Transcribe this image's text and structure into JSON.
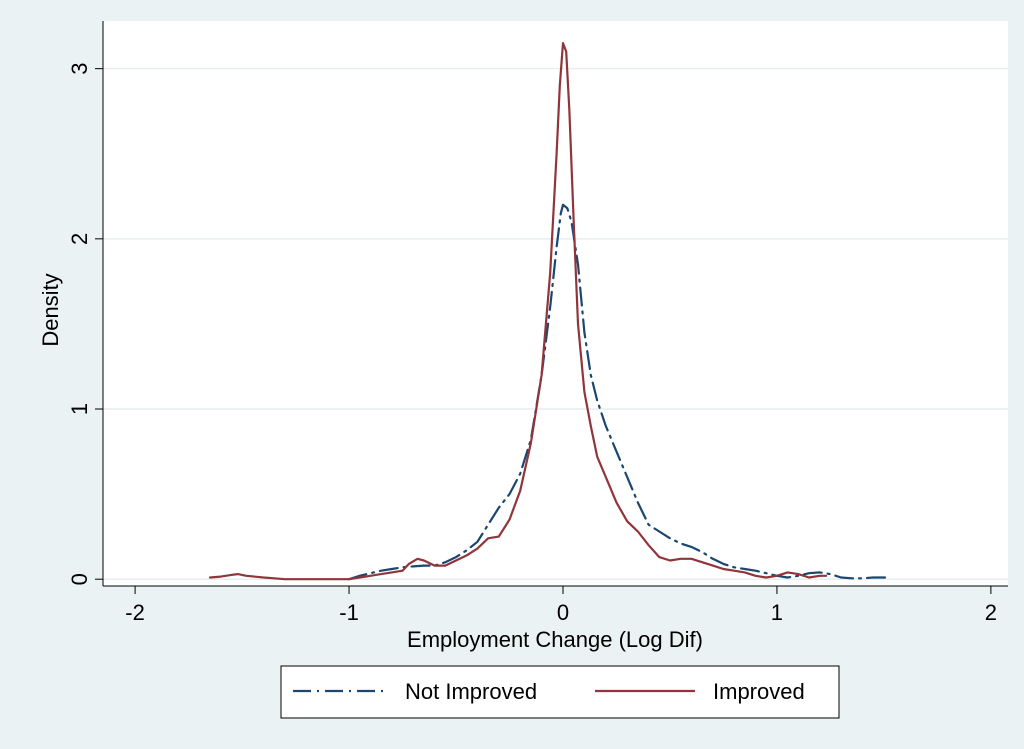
{
  "chart_data": {
    "type": "line",
    "title": "",
    "xlabel": "Employment Change (Log Dif)",
    "ylabel": "Density",
    "xlim": [
      -2.15,
      2.08
    ],
    "ylim": [
      -0.04,
      3.28
    ],
    "x_ticks": [
      -2,
      -1,
      0,
      1,
      2
    ],
    "x_tick_labels": [
      "-2",
      "-1",
      "0",
      "1",
      "2"
    ],
    "y_ticks": [
      0,
      1,
      2,
      3
    ],
    "y_tick_labels": [
      "0",
      "1",
      "2",
      "3"
    ],
    "grid": "horizontal",
    "legend_position": "bottom",
    "series": [
      {
        "name": "Not Improved",
        "color": "#1a476f",
        "dash": "dash-dot",
        "points": [
          [
            -1.0,
            0.0
          ],
          [
            -0.95,
            0.02
          ],
          [
            -0.9,
            0.035
          ],
          [
            -0.85,
            0.05
          ],
          [
            -0.8,
            0.06
          ],
          [
            -0.75,
            0.07
          ],
          [
            -0.7,
            0.075
          ],
          [
            -0.65,
            0.08
          ],
          [
            -0.6,
            0.08
          ],
          [
            -0.55,
            0.1
          ],
          [
            -0.5,
            0.13
          ],
          [
            -0.45,
            0.17
          ],
          [
            -0.4,
            0.22
          ],
          [
            -0.35,
            0.32
          ],
          [
            -0.3,
            0.42
          ],
          [
            -0.25,
            0.5
          ],
          [
            -0.2,
            0.62
          ],
          [
            -0.15,
            0.82
          ],
          [
            -0.1,
            1.2
          ],
          [
            -0.06,
            1.6
          ],
          [
            -0.03,
            1.95
          ],
          [
            -0.01,
            2.15
          ],
          [
            0.0,
            2.2
          ],
          [
            0.02,
            2.18
          ],
          [
            0.04,
            2.1
          ],
          [
            0.07,
            1.85
          ],
          [
            0.1,
            1.45
          ],
          [
            0.13,
            1.2
          ],
          [
            0.16,
            1.05
          ],
          [
            0.2,
            0.9
          ],
          [
            0.25,
            0.75
          ],
          [
            0.3,
            0.6
          ],
          [
            0.35,
            0.45
          ],
          [
            0.4,
            0.32
          ],
          [
            0.45,
            0.28
          ],
          [
            0.5,
            0.24
          ],
          [
            0.55,
            0.21
          ],
          [
            0.6,
            0.19
          ],
          [
            0.65,
            0.16
          ],
          [
            0.7,
            0.12
          ],
          [
            0.75,
            0.09
          ],
          [
            0.8,
            0.07
          ],
          [
            0.85,
            0.06
          ],
          [
            0.9,
            0.05
          ],
          [
            0.95,
            0.035
          ],
          [
            1.0,
            0.02
          ],
          [
            1.05,
            0.01
          ],
          [
            1.1,
            0.02
          ],
          [
            1.15,
            0.035
          ],
          [
            1.2,
            0.04
          ],
          [
            1.25,
            0.03
          ],
          [
            1.3,
            0.01
          ],
          [
            1.35,
            0.005
          ],
          [
            1.4,
            0.005
          ],
          [
            1.45,
            0.01
          ],
          [
            1.52,
            0.01
          ]
        ]
      },
      {
        "name": "Improved",
        "color": "#90353b",
        "dash": "solid",
        "points": [
          [
            -1.65,
            0.01
          ],
          [
            -1.6,
            0.015
          ],
          [
            -1.55,
            0.025
          ],
          [
            -1.52,
            0.03
          ],
          [
            -1.48,
            0.02
          ],
          [
            -1.4,
            0.01
          ],
          [
            -1.35,
            0.005
          ],
          [
            -1.3,
            0.0
          ],
          [
            -1.2,
            0.0
          ],
          [
            -1.1,
            0.0
          ],
          [
            -1.0,
            0.0
          ],
          [
            -0.95,
            0.01
          ],
          [
            -0.9,
            0.02
          ],
          [
            -0.85,
            0.03
          ],
          [
            -0.8,
            0.04
          ],
          [
            -0.75,
            0.05
          ],
          [
            -0.72,
            0.09
          ],
          [
            -0.68,
            0.12
          ],
          [
            -0.65,
            0.11
          ],
          [
            -0.6,
            0.08
          ],
          [
            -0.55,
            0.08
          ],
          [
            -0.5,
            0.11
          ],
          [
            -0.45,
            0.14
          ],
          [
            -0.4,
            0.18
          ],
          [
            -0.35,
            0.24
          ],
          [
            -0.3,
            0.25
          ],
          [
            -0.25,
            0.35
          ],
          [
            -0.2,
            0.52
          ],
          [
            -0.15,
            0.8
          ],
          [
            -0.1,
            1.2
          ],
          [
            -0.06,
            1.8
          ],
          [
            -0.03,
            2.5
          ],
          [
            -0.015,
            2.9
          ],
          [
            0.0,
            3.15
          ],
          [
            0.015,
            3.1
          ],
          [
            0.03,
            2.75
          ],
          [
            0.05,
            2.1
          ],
          [
            0.07,
            1.5
          ],
          [
            0.1,
            1.1
          ],
          [
            0.13,
            0.9
          ],
          [
            0.16,
            0.72
          ],
          [
            0.2,
            0.6
          ],
          [
            0.25,
            0.45
          ],
          [
            0.3,
            0.34
          ],
          [
            0.35,
            0.28
          ],
          [
            0.4,
            0.2
          ],
          [
            0.45,
            0.13
          ],
          [
            0.5,
            0.11
          ],
          [
            0.55,
            0.12
          ],
          [
            0.6,
            0.12
          ],
          [
            0.65,
            0.1
          ],
          [
            0.7,
            0.08
          ],
          [
            0.75,
            0.06
          ],
          [
            0.8,
            0.05
          ],
          [
            0.85,
            0.04
          ],
          [
            0.9,
            0.02
          ],
          [
            0.95,
            0.01
          ],
          [
            1.0,
            0.02
          ],
          [
            1.05,
            0.04
          ],
          [
            1.1,
            0.03
          ],
          [
            1.15,
            0.01
          ],
          [
            1.2,
            0.02
          ],
          [
            1.23,
            0.02
          ]
        ]
      }
    ]
  }
}
